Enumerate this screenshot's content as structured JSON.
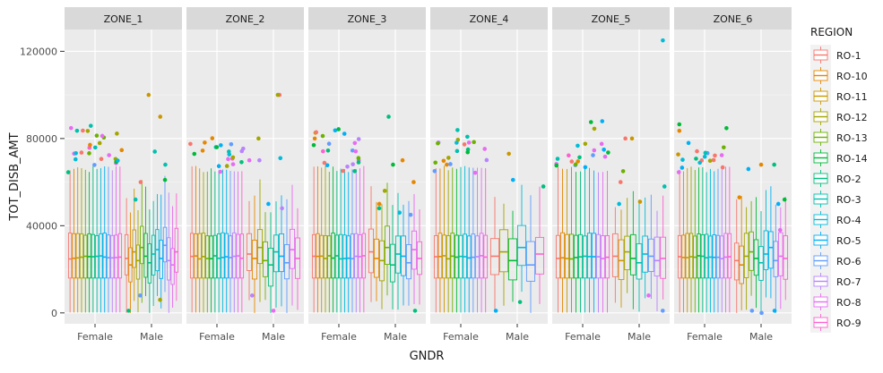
{
  "chart_data": {
    "type": "boxplot",
    "facet_by": "ZONE",
    "xlabel": "GNDR",
    "ylabel": "TOT_DISB_AMT",
    "ylim": [
      -5000,
      130000
    ],
    "yticks": [
      0,
      40000,
      80000,
      120000
    ],
    "ytick_labels": [
      "0",
      "40000",
      "80000",
      "120000"
    ],
    "categories": [
      "Female",
      "Male"
    ],
    "grid": true,
    "legend_position": "right",
    "legend_title": "REGION",
    "series": [
      {
        "name": "RO-1",
        "color": "#F8766D"
      },
      {
        "name": "RO-10",
        "color": "#E58700"
      },
      {
        "name": "RO-11",
        "color": "#C99800"
      },
      {
        "name": "RO-12",
        "color": "#A3A500"
      },
      {
        "name": "RO-13",
        "color": "#6BB100"
      },
      {
        "name": "RO-14",
        "color": "#00BA38"
      },
      {
        "name": "RO-2",
        "color": "#00BF7D"
      },
      {
        "name": "RO-3",
        "color": "#00C0AF"
      },
      {
        "name": "RO-4",
        "color": "#00BCD8"
      },
      {
        "name": "RO-5",
        "color": "#00B0F6"
      },
      {
        "name": "RO-6",
        "color": "#619CFF"
      },
      {
        "name": "RO-7",
        "color": "#B983FF"
      },
      {
        "name": "RO-8",
        "color": "#E76BF3"
      },
      {
        "name": "RO-9",
        "color": "#FD61D1"
      }
    ],
    "box_stats_typical": {
      "Female": {
        "whisker_low": 200,
        "q1": 16000,
        "median": 25500,
        "q3": 36000,
        "whisker_high": 66000
      }
    },
    "facets": [
      {
        "label": "ZONE_1",
        "female": {
          "n_regions": 14,
          "outliers_top": [
            87000,
            86000,
            85000,
            80000,
            78000,
            76000,
            74000,
            72000,
            70000
          ]
        },
        "male": {
          "n_regions": 14,
          "medians": [
            25000,
            22000,
            28000,
            24000,
            30000,
            26000,
            23000,
            27000,
            29000,
            25000,
            31000,
            24000,
            22000,
            28000
          ],
          "outliers": [
            100000,
            90000,
            74000,
            68000,
            61000,
            60000,
            52000,
            8000,
            6000,
            1000
          ]
        }
      },
      {
        "label": "ZONE_2",
        "female": {
          "n_regions": 14,
          "outliers_top": [
            82000,
            80000,
            79000,
            78000,
            75000,
            72000,
            70000
          ]
        },
        "male": {
          "n_regions": 10,
          "medians": [
            27000,
            25000,
            30000,
            24000,
            22000,
            28000,
            26000,
            23000,
            29000,
            25000
          ],
          "outliers": [
            100000,
            100000,
            80000,
            71000,
            70000,
            70000,
            50000,
            48000,
            8000,
            1000
          ]
        }
      },
      {
        "label": "ZONE_3",
        "female": {
          "n_regions": 14,
          "outliers_top": [
            87000,
            85000,
            80000,
            78000,
            76000,
            74000,
            72000,
            70000
          ]
        },
        "male": {
          "n_regions": 10,
          "medians": [
            28000,
            25000,
            24000,
            30000,
            22000,
            27000,
            26000,
            23000,
            29000,
            25000
          ],
          "outliers": [
            90000,
            70000,
            68000,
            60000,
            56000,
            50000,
            48000,
            46000,
            45000,
            1000
          ]
        }
      },
      {
        "label": "ZONE_4",
        "female": {
          "n_regions": 13,
          "outliers_top": [
            84000,
            82000,
            80000,
            78000,
            74000,
            72000,
            70000
          ]
        },
        "male": {
          "n_regions": 6,
          "medians": [
            26000,
            28000,
            24000,
            30000,
            22000,
            27000
          ],
          "outliers": [
            73000,
            61000,
            58000,
            5000,
            1000
          ]
        }
      },
      {
        "label": "ZONE_5",
        "female": {
          "n_regions": 12,
          "outliers_top": [
            89000,
            80000,
            78000,
            76000,
            74000,
            72000,
            70000
          ]
        },
        "male": {
          "n_regions": 9,
          "medians": [
            26000,
            24000,
            28000,
            25000,
            23000,
            27000,
            26000,
            24000,
            25000
          ],
          "outliers": [
            125000,
            80000,
            80000,
            65000,
            60000,
            58000,
            51000,
            50000,
            8000,
            1000
          ]
        }
      },
      {
        "label": "ZONE_6",
        "female": {
          "n_regions": 14,
          "outliers_top": [
            87000,
            78000,
            77000,
            76000,
            74000,
            72000,
            70000
          ]
        },
        "male": {
          "n_regions": 11,
          "medians": [
            24000,
            22000,
            26000,
            28000,
            25000,
            23000,
            27000,
            30000,
            24000,
            26000,
            25000
          ],
          "outliers": [
            68000,
            68000,
            66000,
            53000,
            52000,
            50000,
            38000,
            1000,
            1000,
            0
          ]
        }
      }
    ]
  }
}
